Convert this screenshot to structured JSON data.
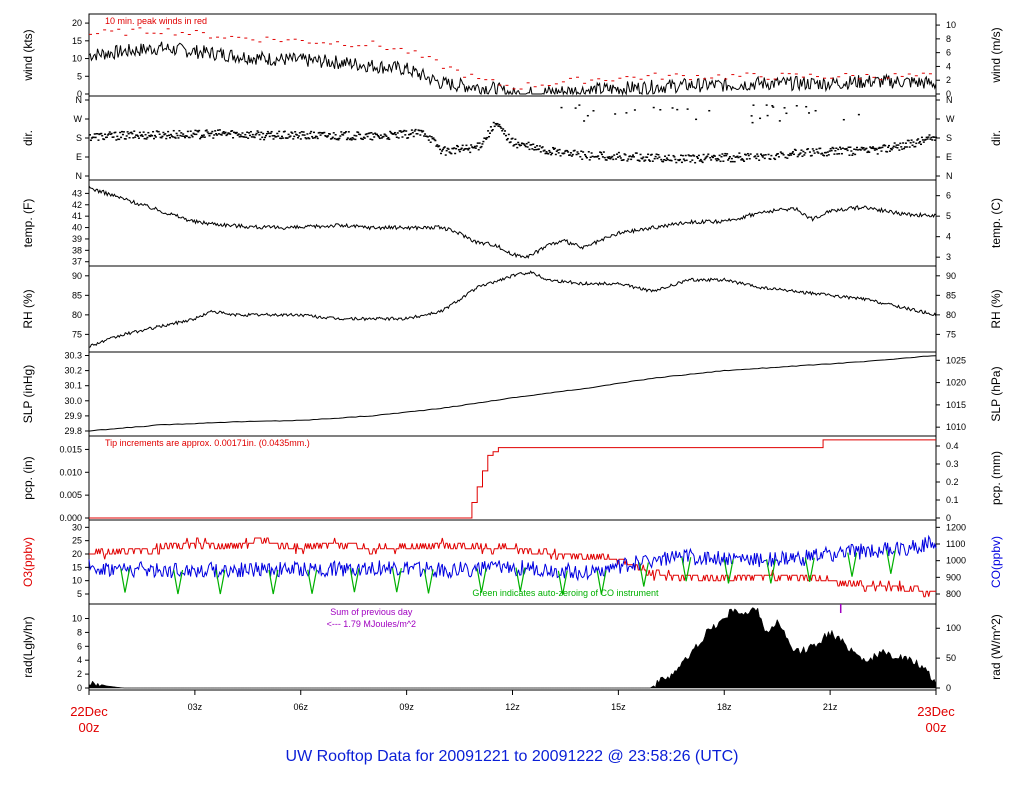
{
  "title": "UW Rooftop Data for 20091221  to  20091222 @ 23:58:26  (UTC)",
  "colors": {
    "red": "#e00000",
    "blue": "#0000e0",
    "green": "#00b000",
    "purple": "#a000c0",
    "black": "#000000",
    "title": "#0a1ed6"
  },
  "time_axis": {
    "ticks": [
      "03z",
      "06z",
      "09z",
      "12z",
      "15z",
      "18z",
      "21z"
    ],
    "start_label": [
      "22Dec",
      "00z"
    ],
    "end_label": [
      "23Dec",
      "00z"
    ]
  },
  "chart_data": [
    {
      "id": "wind",
      "type": "line",
      "ylabel_left": "wind (kts)",
      "ylabel_right": "wind (m/s)",
      "ylim": [
        0,
        22
      ],
      "ticks_left": [
        "0",
        "5",
        "10",
        "15",
        "20"
      ],
      "ticks_right": [
        "0",
        "2",
        "4",
        "6",
        "8",
        "10"
      ],
      "annotation": "10 min. peak winds in red",
      "series": [
        {
          "color": "black",
          "x": [
            0,
            1,
            2,
            3,
            4,
            5,
            6,
            7,
            8,
            9,
            9.5,
            10,
            10.5,
            11,
            11.5,
            12,
            13,
            14,
            15,
            16,
            17,
            18,
            19,
            20,
            21,
            22,
            23,
            24
          ],
          "y": [
            11,
            12,
            13,
            12,
            11,
            10,
            9.5,
            9,
            8,
            7,
            5,
            3,
            2.5,
            2,
            1.5,
            0,
            0.5,
            1,
            1.5,
            2,
            2.5,
            2.5,
            3,
            3,
            3,
            3.5,
            3.5,
            3
          ]
        },
        {
          "color": "red",
          "x": [
            0,
            2,
            4,
            6,
            8,
            9,
            10,
            11,
            12,
            14,
            16,
            18,
            20,
            22,
            24
          ],
          "y": [
            17,
            18,
            16,
            15,
            14,
            12,
            8,
            4,
            2,
            4,
            5,
            5,
            5,
            5,
            5
          ]
        }
      ]
    },
    {
      "id": "dir",
      "type": "scatter",
      "ylabel_left": "dir.",
      "ylabel_right": "dir.",
      "ticks_left": [
        "N",
        "E",
        "S",
        "W",
        "N"
      ],
      "ticks_right": [
        "N",
        "E",
        "S",
        "W",
        "N"
      ],
      "series": [
        {
          "color": "black",
          "x": [
            0,
            1,
            2,
            3,
            4,
            5,
            6,
            7,
            8,
            9,
            9.5,
            10,
            11,
            11.5,
            12,
            13,
            14,
            15,
            16,
            17,
            18,
            19,
            20,
            21,
            22,
            23,
            24
          ],
          "y": [
            190,
            195,
            200,
            200,
            205,
            195,
            195,
            195,
            190,
            200,
            210,
            120,
            140,
            250,
            160,
            120,
            100,
            95,
            90,
            85,
            90,
            95,
            110,
            120,
            120,
            145,
            190
          ]
        }
      ]
    },
    {
      "id": "temp",
      "type": "line",
      "ylabel_left": "temp. (F)",
      "ylabel_right": "temp. (C)",
      "ylim": [
        36.8,
        44
      ],
      "ticks_left": [
        "37",
        "38",
        "39",
        "40",
        "41",
        "42",
        "43"
      ],
      "ticks_right": [
        "3",
        "4",
        "5",
        "6"
      ],
      "series": [
        {
          "color": "black",
          "x": [
            0,
            1,
            2,
            3,
            4,
            5,
            6,
            7,
            8,
            9,
            10,
            10.5,
            11,
            11.5,
            12,
            12.5,
            13,
            13.5,
            14,
            15,
            16,
            17,
            18,
            19,
            20,
            20.5,
            21,
            22,
            23,
            24
          ],
          "y": [
            43.5,
            42.5,
            41.5,
            40.5,
            40.2,
            40,
            40,
            40.2,
            40,
            40,
            40,
            39.5,
            38.7,
            38.5,
            37.6,
            37.5,
            38.5,
            38.8,
            38.2,
            39.5,
            40,
            40.5,
            40.5,
            41.3,
            41.7,
            40.7,
            41.5,
            41.8,
            41.2,
            41
          ]
        }
      ]
    },
    {
      "id": "rh",
      "type": "line",
      "ylabel_left": "RH (%)",
      "ylabel_right": "RH (%)",
      "ylim": [
        71,
        92
      ],
      "ticks_left": [
        "75",
        "80",
        "85",
        "90"
      ],
      "ticks_right": [
        "75",
        "80",
        "85",
        "90"
      ],
      "series": [
        {
          "color": "black",
          "x": [
            0,
            1,
            2,
            3,
            3.5,
            4,
            5,
            6,
            7,
            8,
            9,
            10,
            10.5,
            11,
            12,
            12.5,
            13,
            14,
            15,
            16,
            17,
            18,
            19,
            20,
            21,
            22,
            23,
            24
          ],
          "y": [
            72,
            75,
            77,
            79,
            81,
            80,
            80,
            80,
            79,
            79,
            79,
            81,
            84,
            87,
            90,
            91,
            89,
            88,
            88,
            86,
            89,
            89,
            87,
            86,
            85,
            84,
            82,
            80
          ]
        }
      ]
    },
    {
      "id": "slp",
      "type": "line",
      "ylabel_left": "SLP (inHg)",
      "ylabel_right": "SLP (hPa)",
      "ylim": [
        29.78,
        30.31
      ],
      "ticks_left": [
        "29.8",
        "29.9",
        "30.0",
        "30.1",
        "30.2",
        "30.3"
      ],
      "ticks_right": [
        "1010",
        "1015",
        "1020",
        "1025"
      ],
      "series": [
        {
          "color": "black",
          "x": [
            0,
            2,
            4,
            6,
            8,
            10,
            12,
            14,
            16,
            18,
            20,
            22,
            24
          ],
          "y": [
            29.8,
            29.84,
            29.86,
            29.87,
            29.9,
            29.95,
            30.02,
            30.08,
            30.15,
            30.2,
            30.23,
            30.26,
            30.3
          ]
        }
      ]
    },
    {
      "id": "pcp",
      "type": "line",
      "ylabel_left": "pcp. (in)",
      "ylabel_right": "pcp. (mm)",
      "ylim": [
        0,
        0.0175
      ],
      "ticks_left": [
        "0.000",
        "0.005",
        "0.010",
        "0.015"
      ],
      "ticks_right": [
        "0",
        "0.1",
        "0.2",
        "0.3",
        "0.4"
      ],
      "annotation": "Tip increments are approx. 0.00171in. (0.0435mm.)",
      "series": [
        {
          "color": "red",
          "x": [
            0,
            10.7,
            10.85,
            11.0,
            11.15,
            11.3,
            11.45,
            11.6,
            20.8,
            20.8,
            24
          ],
          "y": [
            0,
            0,
            0.0034,
            0.0068,
            0.0103,
            0.0137,
            0.0145,
            0.0154,
            0.0154,
            0.0171,
            0.0171
          ]
        }
      ]
    },
    {
      "id": "o3co",
      "type": "line",
      "ylabel_left": "O3(ppbv)",
      "ylabel_right": "CO(ppbv)",
      "ylim": [
        2,
        32
      ],
      "ticks_left": [
        "5",
        "10",
        "15",
        "20",
        "25",
        "30"
      ],
      "ticks_right": [
        "800",
        "900",
        "1000",
        "1100",
        "1200"
      ],
      "annotation": "Green indicates auto-zeroing of CO instrument",
      "series": [
        {
          "name": "O3",
          "color": "red",
          "x": [
            0,
            2,
            3,
            4,
            5,
            6,
            7,
            8,
            9,
            10,
            11,
            12,
            13,
            14,
            15,
            16,
            17,
            18,
            19,
            20,
            21,
            22,
            23,
            24
          ],
          "y": [
            20,
            22,
            24,
            23,
            25,
            22,
            24,
            22,
            22,
            24,
            22,
            22,
            20,
            19,
            18,
            12,
            12,
            11,
            12,
            11,
            10,
            8,
            8,
            5
          ]
        },
        {
          "name": "CO",
          "color": "blue",
          "x": [
            0,
            2,
            4,
            6,
            8,
            10,
            12,
            14,
            15,
            16,
            17,
            18,
            19,
            20,
            21,
            22,
            23,
            24
          ],
          "y": [
            15,
            14,
            14,
            14,
            15,
            14,
            15,
            13,
            15,
            18,
            19,
            18,
            18,
            18,
            20,
            21,
            22,
            24
          ]
        }
      ]
    },
    {
      "id": "rad",
      "type": "area",
      "ylabel_left": "rad(Lgly/hr)",
      "ylabel_right": "rad (W/m^2)",
      "ylim": [
        0,
        11.8
      ],
      "ticks_left": [
        "0",
        "2",
        "4",
        "6",
        "8",
        "10"
      ],
      "ticks_right": [
        "0",
        "50",
        "100"
      ],
      "annotation_line1": "Sum of previous day",
      "annotation_line2": "<--- 1.79 MJoules/m^2",
      "series": [
        {
          "color": "black",
          "x": [
            0,
            0.5,
            1,
            15.9,
            16.5,
            17,
            17.5,
            18,
            18.3,
            18.6,
            18.9,
            19.2,
            19.5,
            20,
            20.5,
            21,
            21.5,
            22,
            22.5,
            23,
            23.5,
            24
          ],
          "y": [
            1,
            0.3,
            0,
            0,
            2,
            4.5,
            8,
            10,
            11.5,
            10.5,
            11.5,
            8,
            9.5,
            5,
            6,
            8,
            6,
            4,
            5,
            4.5,
            3.5,
            0.8
          ]
        }
      ]
    }
  ]
}
